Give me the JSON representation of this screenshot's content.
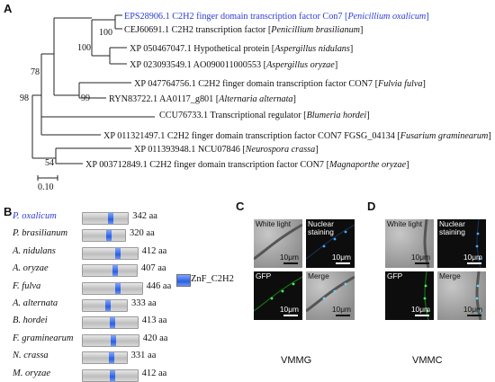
{
  "panels": {
    "a": "A",
    "b": "B",
    "c": "C",
    "d": "D"
  },
  "tree": {
    "leaves": [
      {
        "name": "EPS28906.1 C2H2 finger domain transcription factor Con7 [",
        "species": "Penicillium oxalicum",
        "highlight": true
      },
      {
        "name": "CEJ60691.1 C2H2 transcription factor [",
        "species": "Penicillium brasilianum",
        "highlight": false
      },
      {
        "name": "XP 050467047.1 Hypothetical protein [",
        "species": "Aspergillus nidulans",
        "highlight": false
      },
      {
        "name": "XP 023093549.1 AO090011000553 [",
        "species": "Aspergillus oryzae",
        "highlight": false
      },
      {
        "name": "XP 047764756.1 C2H2 finger domain transcription factor CON7 [",
        "species": "Fulvia fulva",
        "highlight": false
      },
      {
        "name": "RYN83722.1 AA0117_g801 [",
        "species": "Alternaria alternata",
        "highlight": false
      },
      {
        "name": "CCU76733.1 Transcriptional regulator [",
        "species": "Blumeria hordei",
        "highlight": false
      },
      {
        "name": "XP 011321497.1 C2H2 finger domain transcription factor CON7 FGSG_04134 [",
        "species": "Fusarium graminearum",
        "highlight": false
      },
      {
        "name": "XP 011393948.1 NCU07846 [",
        "species": "Neurospora crassa",
        "highlight": false
      },
      {
        "name": "XP 003712849.1 C2H2 finger domain transcription factor CON7 [",
        "species": "Magnaporthe oryzae",
        "highlight": false
      }
    ],
    "bootstraps": [
      "100",
      "100",
      "78",
      "99",
      "98",
      "54"
    ],
    "scale_label": "0.10"
  },
  "domains": {
    "legend": "ZnF_C2H2",
    "rows": [
      {
        "species": "P. oxalicum",
        "length": 342,
        "label": "342 aa",
        "znf_pos": 0.55,
        "highlight": true
      },
      {
        "species": "P. brasilianum",
        "length": 320,
        "label": "320 aa",
        "znf_pos": 0.55,
        "highlight": false
      },
      {
        "species": "A. nidulans",
        "length": 412,
        "label": "412 aa",
        "znf_pos": 0.6,
        "highlight": false
      },
      {
        "species": "A. oryzae",
        "length": 407,
        "label": "407 aa",
        "znf_pos": 0.55,
        "highlight": false
      },
      {
        "species": "F. fulva",
        "length": 446,
        "label": "446 aa",
        "znf_pos": 0.55,
        "highlight": false
      },
      {
        "species": "A. alternata",
        "length": 333,
        "label": "333 aa",
        "znf_pos": 0.52,
        "highlight": false
      },
      {
        "species": "B. hordei",
        "length": 413,
        "label": "413 aa",
        "znf_pos": 0.5,
        "highlight": false
      },
      {
        "species": "F. graminearum",
        "length": 420,
        "label": "420 aa",
        "znf_pos": 0.5,
        "highlight": false
      },
      {
        "species": "N. crassa",
        "length": 331,
        "label": "331 aa",
        "znf_pos": 0.6,
        "highlight": false
      },
      {
        "species": "M. oryzae",
        "length": 412,
        "label": "412 aa",
        "znf_pos": 0.5,
        "highlight": false
      }
    ]
  },
  "microscopy": {
    "c": {
      "caption": "VMMG",
      "tiles": [
        {
          "label": "White light",
          "type": "bf"
        },
        {
          "label": "Nuclear staining",
          "type": "dark"
        },
        {
          "label": "GFP",
          "type": "dark"
        },
        {
          "label": "Merge",
          "type": "bf"
        }
      ]
    },
    "d": {
      "caption": "VMMC",
      "tiles": [
        {
          "label": "White light",
          "type": "bf"
        },
        {
          "label": "Nuclear staining",
          "type": "dark"
        },
        {
          "label": "GFP",
          "type": "dark"
        },
        {
          "label": "Merge",
          "type": "bf"
        }
      ]
    },
    "scale": "10μm"
  }
}
